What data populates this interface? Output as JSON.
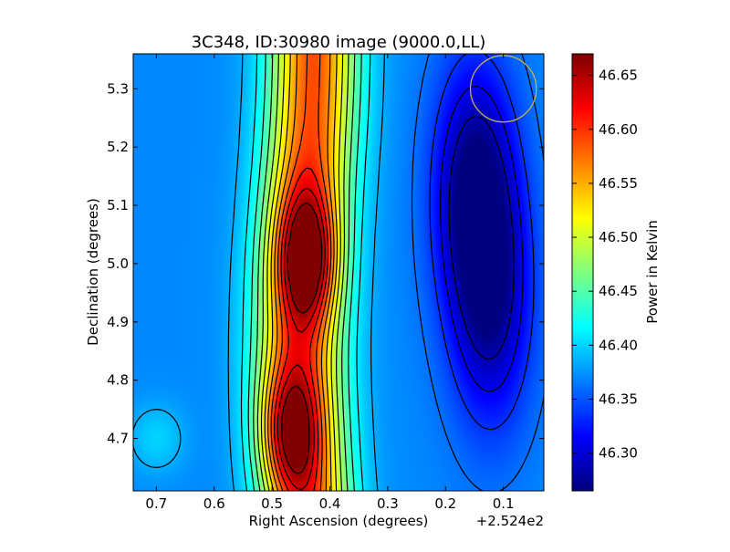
{
  "chart_data": {
    "type": "heatmap",
    "title": "3C348, ID:30980 image (9000.0,LL)",
    "xlabel": "Right Ascension (degrees)",
    "ylabel": "Declination (degrees)",
    "x_offset_label": "+2.524e2",
    "x_ticks": [
      "0.7",
      "0.6",
      "0.5",
      "0.4",
      "0.3",
      "0.2",
      "0.1"
    ],
    "y_ticks": [
      "4.7",
      "4.8",
      "4.9",
      "5.0",
      "5.1",
      "5.2",
      "5.3"
    ],
    "x_tick_values": [
      0.7,
      0.6,
      0.5,
      0.4,
      0.3,
      0.2,
      0.1
    ],
    "y_tick_values": [
      4.7,
      4.8,
      4.9,
      5.0,
      5.1,
      5.2,
      5.3
    ],
    "xlim": [
      0.74,
      0.03
    ],
    "ylim": [
      4.61,
      5.36
    ],
    "colorbar": {
      "label": "Power in Kelvin",
      "ticks": [
        "46.30",
        "46.35",
        "46.40",
        "46.45",
        "46.50",
        "46.55",
        "46.60",
        "46.65"
      ],
      "tick_values": [
        46.3,
        46.35,
        46.4,
        46.45,
        46.5,
        46.55,
        46.6,
        46.65
      ],
      "range": [
        46.265,
        46.67
      ],
      "colormap": "jet"
    },
    "features": [
      {
        "kind": "ridge",
        "ra": 0.44,
        "dec_range": [
          4.62,
          5.36
        ],
        "peak_value": 46.66
      },
      {
        "kind": "peak",
        "ra": 0.44,
        "dec": 5.01,
        "value": 46.66
      },
      {
        "kind": "peak",
        "ra": 0.47,
        "dec": 4.71,
        "value": 46.62
      },
      {
        "kind": "trough",
        "ra": 0.15,
        "dec": 5.13,
        "value": 46.27
      },
      {
        "kind": "trough",
        "ra": 0.12,
        "dec": 4.93,
        "value": 46.29
      },
      {
        "kind": "background",
        "ra": 0.65,
        "dec": 5.0,
        "value": 46.37
      },
      {
        "kind": "local-max",
        "ra": 0.7,
        "dec": 4.7,
        "value": 46.4
      }
    ],
    "beam_marker": {
      "ra": 0.1,
      "dec": 5.3,
      "radius_deg": 0.057,
      "color": "#c8b050"
    },
    "contours": true,
    "grid": false
  }
}
